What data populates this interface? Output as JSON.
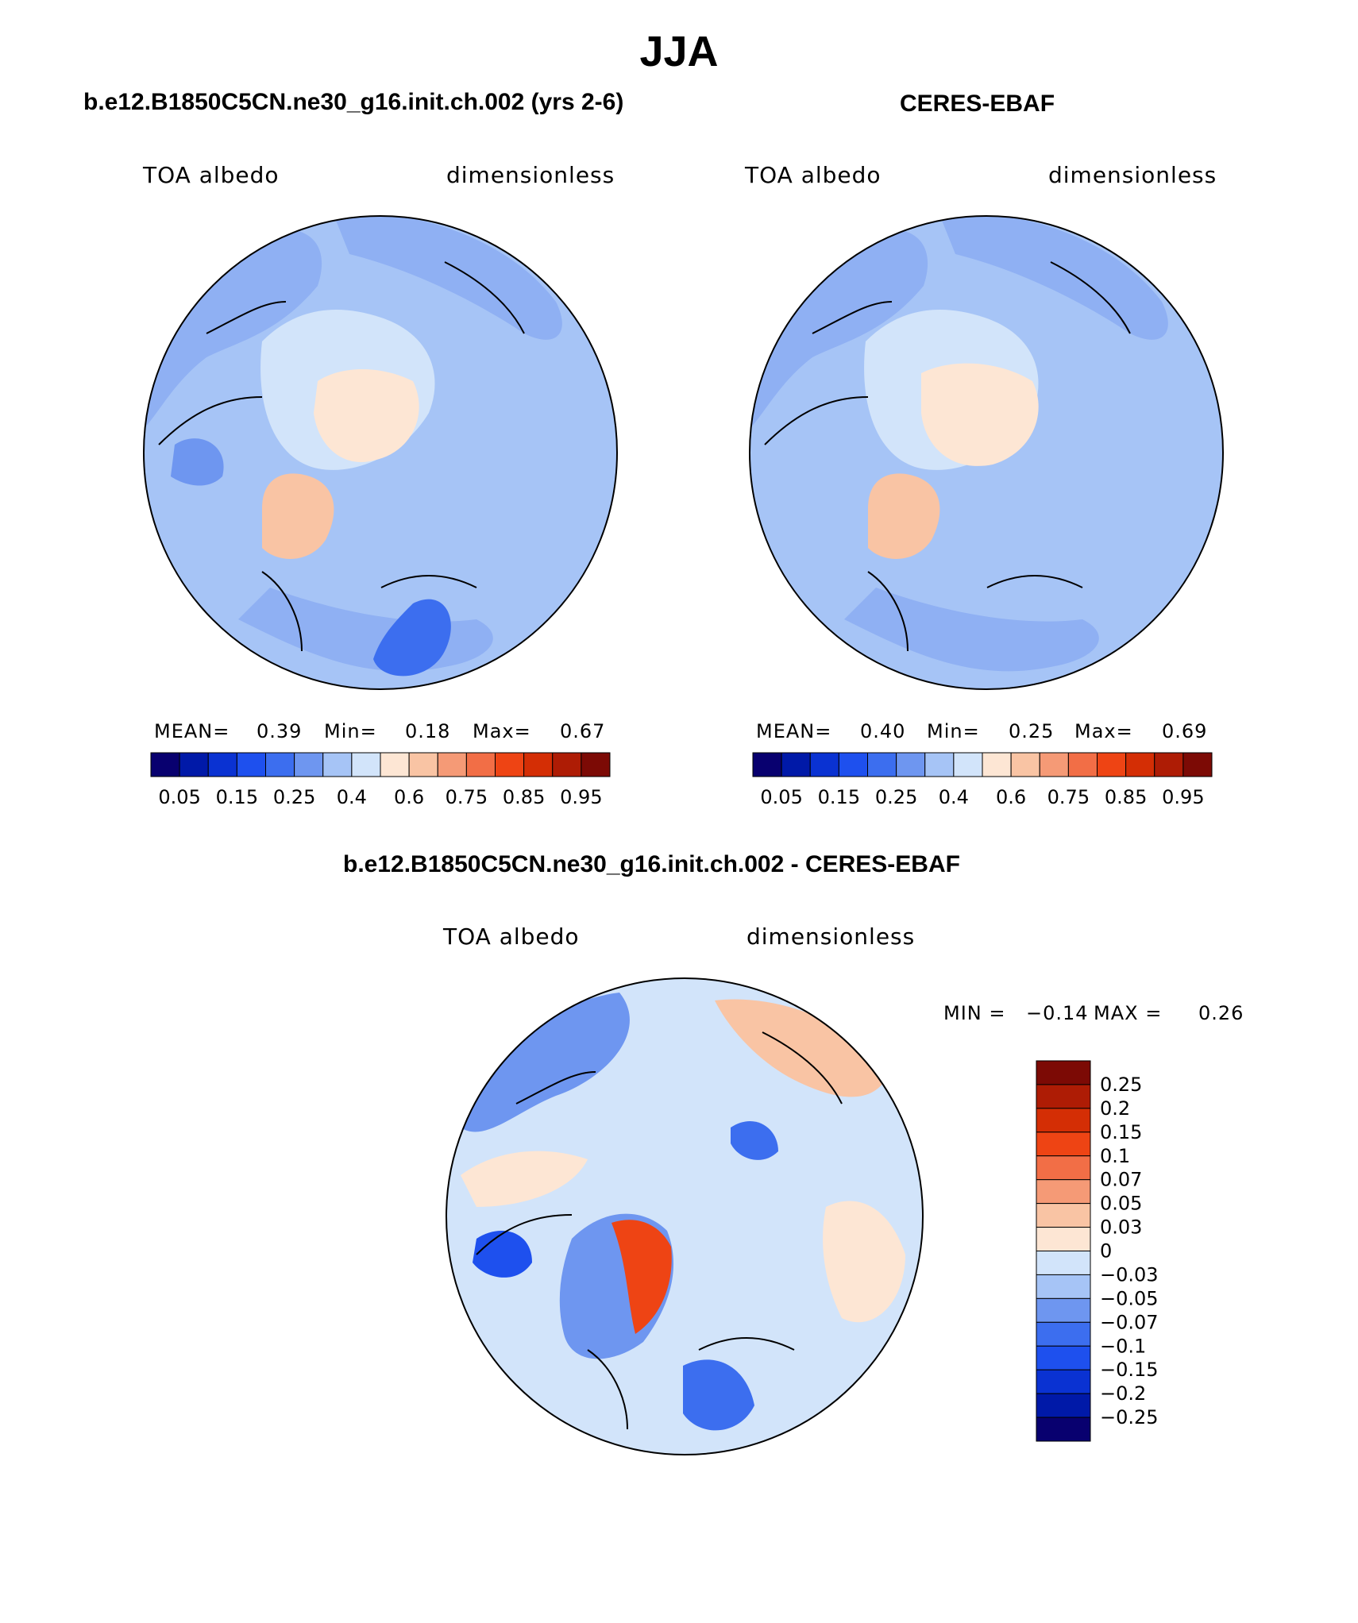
{
  "figure": {
    "title": "JJA"
  },
  "panels": {
    "model": {
      "title": "b.e12.B1850C5CN.ne30_g16.init.ch.002 (yrs 2-6)",
      "left_label": "TOA albedo",
      "right_label": "dimensionless",
      "stats": {
        "mean_label": "MEAN=",
        "mean": "0.39",
        "min_label": "Min=",
        "min": "0.18",
        "max_label": "Max=",
        "max": "0.67"
      }
    },
    "obs": {
      "title": "CERES-EBAF",
      "left_label": "TOA albedo",
      "right_label": "dimensionless",
      "stats": {
        "mean_label": "MEAN=",
        "mean": "0.40",
        "min_label": "Min=",
        "min": "0.25",
        "max_label": "Max=",
        "max": "0.69"
      }
    },
    "diff": {
      "title": "b.e12.B1850C5CN.ne30_g16.init.ch.002 - CERES-EBAF",
      "left_label": "TOA albedo",
      "right_label": "dimensionless",
      "stats": {
        "min_label": "MIN =",
        "min": "−0.14",
        "max_label": "MAX =",
        "max": "0.26"
      }
    }
  },
  "colorbars": {
    "albedo": {
      "colors": [
        "#08006f",
        "#0019a8",
        "#0a32d2",
        "#1e50ee",
        "#3c6eef",
        "#6e96f0",
        "#a6c4f6",
        "#d2e4fa",
        "#fde6d4",
        "#f9c4a4",
        "#f59a76",
        "#f26e46",
        "#ee4414",
        "#d42e05",
        "#ae1c05",
        "#7c0a05"
      ],
      "ticks": [
        "0.05",
        "0.15",
        "0.25",
        "0.4",
        "0.6",
        "0.75",
        "0.85",
        "0.95"
      ]
    },
    "diff": {
      "colors": [
        "#7c0a05",
        "#ae1c05",
        "#d42e05",
        "#ee4414",
        "#f26e46",
        "#f59a76",
        "#f9c4a4",
        "#fde6d4",
        "#d2e4fa",
        "#a6c4f6",
        "#6e96f0",
        "#3c6eef",
        "#1e50ee",
        "#0a32d2",
        "#0019a8",
        "#08006f"
      ],
      "ticks": [
        "0.25",
        "0.2",
        "0.15",
        "0.1",
        "0.07",
        "0.05",
        "0.03",
        "0",
        "−0.03",
        "−0.05",
        "−0.07",
        "−0.1",
        "−0.15",
        "−0.2",
        "−0.25"
      ]
    }
  }
}
